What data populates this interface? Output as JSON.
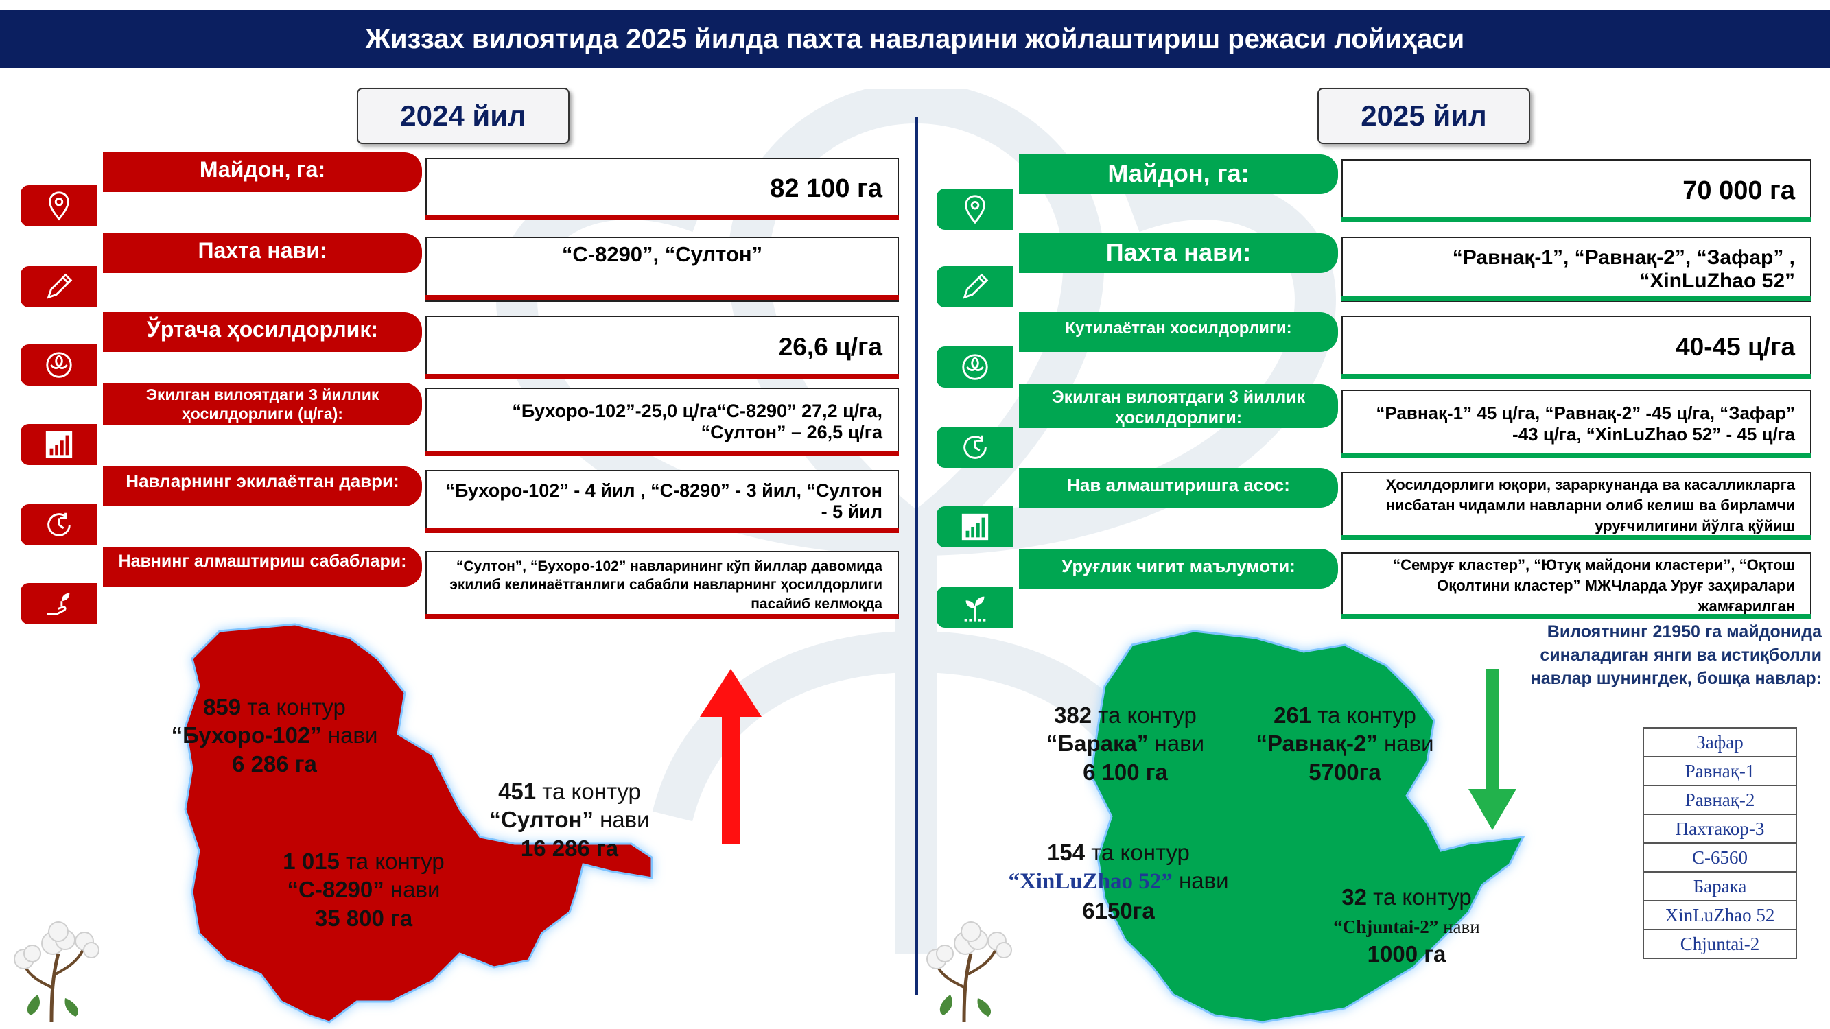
{
  "header": {
    "title": "Жиззах вилоятида 2025 йилда пахта навларини жойлаштириш режаси лойиҳаси"
  },
  "left": {
    "year": "2024 йил",
    "rows": [
      {
        "icon": "map-pin-icon",
        "label": "Майдон, га:",
        "value": "82 100 га"
      },
      {
        "icon": "pencil-icon",
        "label": "Пахта нави:",
        "value": "“С-8290”, “Султон”"
      },
      {
        "icon": "cotton-icon",
        "label": "Ўртача ҳосилдорлик:",
        "value": "26,6 ц/га"
      },
      {
        "icon": "bar-chart-icon",
        "label": "Экилган вилоятдаги 3 йиллик ҳосилдорлиги (ц/га):",
        "value": "“Бухоро-102”-25,0 ц/га“С-8290” 27,2 ц/га, “Султон” – 26,5 ц/га"
      },
      {
        "icon": "clock-icon",
        "label": "Навларнинг экилаётган даври:",
        "value": "“Бухоро-102” - 4 йил , “С-8290” - 3 йил, “Султон - 5 йил"
      },
      {
        "icon": "plant-hand-icon",
        "label": "Навнинг алмаштириш сабаблари:",
        "value": "“Султон”, “Бухоро-102” навларининг кўп йиллар давомида экилиб келинаётганлиги сабабли навларнинг ҳосилдорлиги пасайиб келмоқда"
      }
    ],
    "map_labels": [
      {
        "count": "859",
        "suffix": " та контур",
        "variety": "“Бухоро-102”",
        "nav": " нави",
        "area": "6 286 га"
      },
      {
        "count": "451",
        "suffix": " та контур",
        "variety": "“Султон”",
        "nav": " нави",
        "area": "16 286 га"
      },
      {
        "count": "1 015",
        "suffix": " та контур",
        "variety": "“С-8290”",
        "nav": " нави",
        "area": "35 800 га"
      }
    ]
  },
  "right": {
    "year": "2025 йил",
    "rows": [
      {
        "icon": "map-pin-icon",
        "label": "Майдон, га:",
        "value": "70 000 га"
      },
      {
        "icon": "pencil-icon",
        "label": "Пахта нави:",
        "value": "“Равнақ-1”, “Равнақ-2”, “Зафар” , “XinLuZhao 52”"
      },
      {
        "icon": "cotton-icon",
        "label": "Кутилаётган хосилдорлиги:",
        "value": "40-45 ц/га"
      },
      {
        "icon": "clock-icon",
        "label": "Экилган вилоятдаги 3 йиллик ҳосилдорлиги:",
        "value": "“Равнақ-1” 45 ц/га, “Равнақ-2” -45 ц/га, “Зафар” -43 ц/га, “XinLuZhao 52” - 45 ц/га"
      },
      {
        "icon": "bar-chart-icon",
        "label": "Нав алмаштиришга асос:",
        "value": "Ҳосилдорлиги юқори,  зараркунанда ва касалликларга нисбатан чидамли навларни олиб келиш ва бирламчи уруғчилигини йўлга қўйиш"
      },
      {
        "icon": "seedling-icon",
        "label": "Уруғлик чигит маълумоти:",
        "value": "“Семруғ кластер”, “Ютуқ майдони кластери”, “Оқтош Оқолтини кластер” МЖЧларда Уруғ заҳиралари жамғарилган"
      }
    ],
    "map_labels": [
      {
        "count": "382",
        "suffix": " та контур",
        "variety": "“Барака”",
        "nav": " нави",
        "area": "6 100 га"
      },
      {
        "count": "261",
        "suffix": " та контур",
        "variety": "“Равнақ-2”",
        "nav": " нави",
        "area": "5700га"
      },
      {
        "count": "154",
        "suffix": " та контур",
        "variety": "“XinLuZhao 52”",
        "nav": " нави",
        "area": "6150га"
      },
      {
        "count": "32",
        "suffix": " та контур",
        "variety": "“Chjuntai-2”",
        "nav": " нави",
        "area": "1000 га"
      }
    ],
    "note": "Вилоятнинг 21950 га майдонида синаладиган янги ва истиқболли навлар шунингдек, бошқа навлар:",
    "varieties": [
      "Зафар",
      "Равнақ-1",
      "Равнақ-2",
      "Пахтакор-3",
      "С-6560",
      "Барака",
      "XinLuZhao 52",
      "Chjuntai-2"
    ]
  },
  "colors": {
    "banner": "#0b1f60",
    "red": "#c00000",
    "green": "#00a651",
    "divider": "#102a72"
  }
}
